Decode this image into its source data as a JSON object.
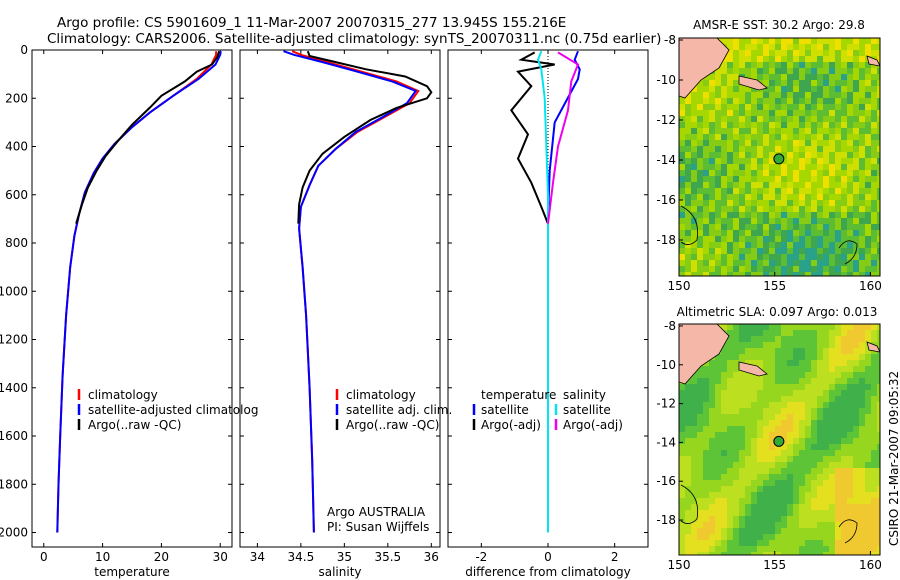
{
  "header": {
    "title_line1": "Argo profile: CS 5901609_1 11-Mar-2007 20070315_277 13.945S 155.216E",
    "title_line2": "Climatology: CARS2006. Satellite-adjusted climatology: synTS_20070311.nc (0.75d earlier)"
  },
  "footer": {
    "credit": "CSIRO 21-Mar-2007 09:05:32"
  },
  "colors": {
    "climatology": "#ff0000",
    "satellite": "#0000ff",
    "argo": "#000000",
    "sal_satellite": "#00e5ee",
    "sal_argo": "#ee00ee",
    "map_land": "#f5b8a8"
  },
  "chart_data": [
    {
      "type": "line",
      "xlabel": "temperature",
      "ylabel": "",
      "xlim": [
        -2,
        32
      ],
      "ylim": [
        2060,
        0
      ],
      "y_reversed": true,
      "xticks": [
        0,
        10,
        20,
        30
      ],
      "yticks": [
        0,
        200,
        400,
        600,
        800,
        1000,
        1200,
        1400,
        1600,
        1800,
        2000
      ],
      "legend": {
        "position": "lower-right",
        "entries": [
          "climatology",
          "satellite-adjusted climatolog",
          "Argo(..raw -QC)"
        ]
      },
      "series": [
        {
          "name": "climatology",
          "color": "#ff0000",
          "points": [
            [
              29.3,
              5
            ],
            [
              29.3,
              20
            ],
            [
              28.5,
              60
            ],
            [
              26,
              120
            ],
            [
              22,
              190
            ],
            [
              18,
              260
            ],
            [
              15,
              320
            ],
            [
              12,
              390
            ],
            [
              10,
              450
            ],
            [
              8.5,
              510
            ],
            [
              7,
              590
            ],
            [
              6,
              680
            ],
            [
              5.2,
              770
            ],
            [
              4.5,
              900
            ],
            [
              3.8,
              1100
            ],
            [
              3.2,
              1350
            ],
            [
              2.8,
              1600
            ],
            [
              2.5,
              1800
            ],
            [
              2.3,
              2000
            ]
          ]
        },
        {
          "name": "satellite-adjusted climatolog",
          "color": "#0000ff",
          "points": [
            [
              30.1,
              5
            ],
            [
              30.0,
              20
            ],
            [
              29.2,
              60
            ],
            [
              26.3,
              120
            ],
            [
              22,
              190
            ],
            [
              18,
              260
            ],
            [
              15,
              320
            ],
            [
              12,
              390
            ],
            [
              10,
              450
            ],
            [
              8.5,
              510
            ],
            [
              7,
              590
            ],
            [
              6,
              680
            ],
            [
              5.2,
              770
            ],
            [
              4.5,
              900
            ],
            [
              3.8,
              1100
            ],
            [
              3.2,
              1350
            ],
            [
              2.8,
              1600
            ],
            [
              2.5,
              1800
            ],
            [
              2.3,
              2000
            ]
          ]
        },
        {
          "name": "Argo(..raw -QC)",
          "color": "#000000",
          "points": [
            [
              29.8,
              5
            ],
            [
              29.5,
              30
            ],
            [
              28.6,
              60
            ],
            [
              26,
              90
            ],
            [
              24,
              130
            ],
            [
              20,
              190
            ],
            [
              18,
              240
            ],
            [
              15,
              310
            ],
            [
              12.5,
              380
            ],
            [
              10.5,
              440
            ],
            [
              9,
              500
            ],
            [
              7.5,
              570
            ],
            [
              6.5,
              640
            ],
            [
              5.5,
              720
            ]
          ]
        }
      ]
    },
    {
      "type": "line",
      "xlabel": "salinity",
      "ylabel": "",
      "xlim": [
        33.8,
        36.1
      ],
      "ylim": [
        2060,
        0
      ],
      "y_reversed": true,
      "xticks": [
        34,
        34.5,
        35,
        35.5,
        36
      ],
      "yticks": [
        0,
        200,
        400,
        600,
        800,
        1000,
        1200,
        1400,
        1600,
        1800,
        2000
      ],
      "legend": {
        "position": "lower-right",
        "entries": [
          "climatology",
          "satellite adj. clim.",
          "Argo(..raw -QC)"
        ]
      },
      "annotation": [
        "Argo AUSTRALIA",
        "PI: Susan Wijffels"
      ],
      "series": [
        {
          "name": "climatology",
          "color": "#ff0000",
          "points": [
            [
              34.4,
              5
            ],
            [
              34.5,
              20
            ],
            [
              34.8,
              50
            ],
            [
              35.2,
              90
            ],
            [
              35.6,
              130
            ],
            [
              35.85,
              170
            ],
            [
              35.75,
              220
            ],
            [
              35.45,
              280
            ],
            [
              35.15,
              340
            ],
            [
              34.9,
              410
            ],
            [
              34.7,
              480
            ],
            [
              34.6,
              560
            ],
            [
              34.5,
              650
            ],
            [
              34.48,
              740
            ],
            [
              34.52,
              900
            ],
            [
              34.56,
              1100
            ],
            [
              34.6,
              1400
            ],
            [
              34.63,
              1700
            ],
            [
              34.65,
              2000
            ]
          ]
        },
        {
          "name": "satellite adj. clim.",
          "color": "#0000ff",
          "points": [
            [
              34.3,
              5
            ],
            [
              34.42,
              20
            ],
            [
              34.75,
              50
            ],
            [
              35.15,
              90
            ],
            [
              35.55,
              130
            ],
            [
              35.82,
              170
            ],
            [
              35.72,
              220
            ],
            [
              35.43,
              280
            ],
            [
              35.13,
              340
            ],
            [
              34.9,
              410
            ],
            [
              34.7,
              480
            ],
            [
              34.6,
              560
            ],
            [
              34.5,
              650
            ],
            [
              34.48,
              740
            ],
            [
              34.52,
              900
            ],
            [
              34.56,
              1100
            ],
            [
              34.6,
              1400
            ],
            [
              34.63,
              1700
            ],
            [
              34.65,
              2000
            ]
          ]
        },
        {
          "name": "Argo(..raw -QC)",
          "color": "#000000",
          "points": [
            [
              34.58,
              5
            ],
            [
              34.6,
              25
            ],
            [
              34.9,
              50
            ],
            [
              35.25,
              80
            ],
            [
              35.7,
              110
            ],
            [
              35.95,
              150
            ],
            [
              36.0,
              175
            ],
            [
              35.95,
              200
            ],
            [
              35.6,
              240
            ],
            [
              35.3,
              290
            ],
            [
              35.0,
              360
            ],
            [
              34.75,
              430
            ],
            [
              34.6,
              500
            ],
            [
              34.52,
              570
            ],
            [
              34.48,
              640
            ],
            [
              34.47,
              720
            ]
          ]
        }
      ]
    },
    {
      "type": "line",
      "xlabel": "difference from climatology",
      "ylabel": "",
      "xlim": [
        -3,
        3
      ],
      "ylim": [
        2060,
        0
      ],
      "y_reversed": true,
      "xticks": [
        -2,
        0,
        2
      ],
      "yticks": [
        0,
        200,
        400,
        600,
        800,
        1000,
        1200,
        1400,
        1600,
        1800,
        2000
      ],
      "legend": {
        "position": "lower-center",
        "columns": [
          {
            "heading": "temperature",
            "entries": [
              "satellite",
              "Argo(-adj)"
            ]
          },
          {
            "heading": "salinity",
            "entries": [
              "satellite",
              "Argo(-adj)"
            ]
          }
        ]
      },
      "series": [
        {
          "name": "temperature satellite",
          "color": "#0000ff",
          "points": [
            [
              0.9,
              5
            ],
            [
              0.8,
              40
            ],
            [
              0.95,
              80
            ],
            [
              0.9,
              120
            ],
            [
              0.2,
              300
            ],
            [
              0.05,
              500
            ],
            [
              0,
              700
            ],
            [
              0,
              1000
            ],
            [
              0,
              2000
            ]
          ]
        },
        {
          "name": "temperature Argo(-adj)",
          "color": "#000000",
          "points": [
            [
              -0.4,
              10
            ],
            [
              -0.8,
              40
            ],
            [
              0.2,
              60
            ],
            [
              -0.9,
              90
            ],
            [
              -0.5,
              150
            ],
            [
              -1.1,
              250
            ],
            [
              -0.6,
              350
            ],
            [
              -0.9,
              450
            ],
            [
              -0.5,
              550
            ],
            [
              -0.2,
              650
            ],
            [
              0,
              720
            ]
          ]
        },
        {
          "name": "salinity satellite",
          "color": "#00e5ee",
          "points": [
            [
              -0.2,
              5
            ],
            [
              -0.3,
              40
            ],
            [
              -0.2,
              80
            ],
            [
              -0.1,
              200
            ],
            [
              0,
              600
            ],
            [
              0,
              2000
            ]
          ]
        },
        {
          "name": "salinity Argo(-adj)",
          "color": "#ee00ee",
          "points": [
            [
              0.3,
              10
            ],
            [
              0.9,
              60
            ],
            [
              0.7,
              130
            ],
            [
              0.6,
              250
            ],
            [
              0.3,
              400
            ],
            [
              0.15,
              550
            ],
            [
              0,
              720
            ]
          ]
        }
      ]
    },
    {
      "type": "heatmap",
      "title": "AMSR-E SST: 30.2  Argo: 29.8",
      "xticks": [
        150,
        155,
        160
      ],
      "yticks": [
        -8,
        -10,
        -12,
        -14,
        -16,
        -18
      ],
      "xlim": [
        150,
        160.5
      ],
      "ylim": [
        -19.8,
        -7.9
      ],
      "float_position": [
        155.216,
        -13.945
      ]
    },
    {
      "type": "heatmap",
      "title": "Altimetric SLA: 0.097  Argo: 0.013",
      "xticks": [
        150,
        155,
        160
      ],
      "yticks": [
        -8,
        -10,
        -12,
        -14,
        -16,
        -18
      ],
      "xlim": [
        150,
        160.5
      ],
      "ylim": [
        -19.8,
        -7.9
      ],
      "float_position": [
        155.216,
        -13.945
      ]
    }
  ]
}
